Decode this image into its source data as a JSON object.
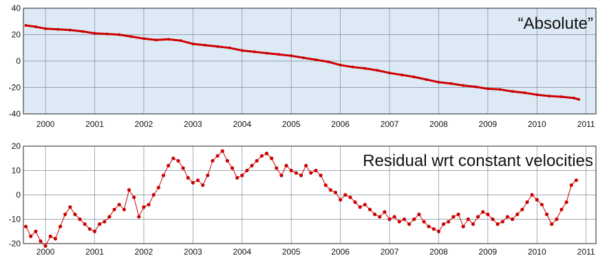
{
  "chart_data": [
    {
      "type": "line",
      "title": "",
      "label": "“Absolute”",
      "xlabel": "",
      "ylabel": "",
      "x_ticks": [
        "2000",
        "2001",
        "2002",
        "2003",
        "2004",
        "2005",
        "2006",
        "2007",
        "2008",
        "2009",
        "2010",
        "2011"
      ],
      "y_ticks": [
        "40",
        "20",
        "0",
        "-20",
        "-40"
      ],
      "xlim": [
        1999.55,
        2011.2
      ],
      "ylim": [
        -40,
        40
      ],
      "grid": true,
      "background": "#dde9f5",
      "series": [
        {
          "color": "#cc0000",
          "markers": true,
          "x": [
            1999.6,
            1999.8,
            2000.0,
            2000.25,
            2000.5,
            2000.75,
            2001.0,
            2001.25,
            2001.5,
            2001.75,
            2002.0,
            2002.25,
            2002.5,
            2002.75,
            2003.0,
            2003.25,
            2003.5,
            2003.75,
            2004.0,
            2004.25,
            2004.5,
            2004.75,
            2005.0,
            2005.25,
            2005.5,
            2005.75,
            2006.0,
            2006.25,
            2006.5,
            2006.75,
            2007.0,
            2007.25,
            2007.5,
            2007.75,
            2008.0,
            2008.25,
            2008.5,
            2008.75,
            2009.0,
            2009.25,
            2009.5,
            2009.75,
            2010.0,
            2010.25,
            2010.5,
            2010.75,
            2010.85
          ],
          "y": [
            27,
            26,
            24.5,
            24,
            23.5,
            22.5,
            21,
            20.5,
            20,
            18.5,
            17,
            16,
            16.5,
            15.5,
            13,
            12,
            11,
            10,
            8,
            7,
            6,
            5,
            4,
            2.5,
            1,
            -0.5,
            -3,
            -4.5,
            -5.5,
            -7,
            -9,
            -10.5,
            -12,
            -14,
            -16,
            -17,
            -18.5,
            -19.5,
            -21,
            -21.5,
            -23,
            -24,
            -25.5,
            -26.5,
            -27,
            -28,
            -29
          ]
        }
      ]
    },
    {
      "type": "line",
      "title": "",
      "label": "Residual  wrt constant velocities",
      "xlabel": "",
      "ylabel": "",
      "x_ticks": [
        "2000",
        "2001",
        "2002",
        "2003",
        "2004",
        "2005",
        "2006",
        "2007",
        "2008",
        "2009",
        "2010",
        "2011"
      ],
      "y_ticks": [
        "20",
        "10",
        "0",
        "-10",
        "-20"
      ],
      "xlim": [
        1999.55,
        2011.2
      ],
      "ylim": [
        -20,
        20
      ],
      "grid": true,
      "background": "#ffffff",
      "series": [
        {
          "color": "#cc0000",
          "markers": true,
          "x": [
            1999.6,
            1999.7,
            1999.8,
            1999.9,
            2000.0,
            2000.1,
            2000.2,
            2000.3,
            2000.4,
            2000.5,
            2000.6,
            2000.7,
            2000.8,
            2000.9,
            2001.0,
            2001.1,
            2001.2,
            2001.3,
            2001.4,
            2001.5,
            2001.6,
            2001.7,
            2001.8,
            2001.9,
            2002.0,
            2002.1,
            2002.2,
            2002.3,
            2002.4,
            2002.5,
            2002.6,
            2002.7,
            2002.8,
            2002.9,
            2003.0,
            2003.1,
            2003.2,
            2003.3,
            2003.4,
            2003.5,
            2003.6,
            2003.7,
            2003.8,
            2003.9,
            2004.0,
            2004.1,
            2004.2,
            2004.3,
            2004.4,
            2004.5,
            2004.6,
            2004.7,
            2004.8,
            2004.9,
            2005.0,
            2005.1,
            2005.2,
            2005.3,
            2005.4,
            2005.5,
            2005.6,
            2005.7,
            2005.8,
            2005.9,
            2006.0,
            2006.1,
            2006.2,
            2006.3,
            2006.4,
            2006.5,
            2006.6,
            2006.7,
            2006.8,
            2006.9,
            2007.0,
            2007.1,
            2007.2,
            2007.3,
            2007.4,
            2007.5,
            2007.6,
            2007.7,
            2007.8,
            2007.9,
            2008.0,
            2008.1,
            2008.2,
            2008.3,
            2008.4,
            2008.5,
            2008.6,
            2008.7,
            2008.8,
            2008.9,
            2009.0,
            2009.1,
            2009.2,
            2009.3,
            2009.4,
            2009.5,
            2009.6,
            2009.7,
            2009.8,
            2009.9,
            2010.0,
            2010.1,
            2010.2,
            2010.3,
            2010.4,
            2010.5,
            2010.6,
            2010.7,
            2010.8
          ],
          "y": [
            -13,
            -17,
            -15,
            -19,
            -21,
            -17,
            -18,
            -13,
            -8,
            -5,
            -8,
            -10,
            -12,
            -14,
            -15,
            -12,
            -11,
            -9,
            -6,
            -4,
            -6,
            2,
            -1,
            -9,
            -5,
            -4,
            0,
            3,
            8,
            12,
            15,
            14,
            11,
            7,
            5,
            6,
            4,
            8,
            14,
            16,
            18,
            14,
            11,
            7,
            8,
            10,
            12,
            14,
            16,
            17,
            15,
            11,
            8,
            12,
            10,
            9,
            8,
            12,
            9,
            10,
            8,
            4,
            2,
            1,
            -2,
            0,
            -1,
            -3,
            -5,
            -4,
            -6,
            -8,
            -9,
            -7,
            -10,
            -9,
            -11,
            -10,
            -12,
            -10,
            -8,
            -11,
            -13,
            -14,
            -15,
            -12,
            -11,
            -9,
            -8,
            -13,
            -10,
            -12,
            -9,
            -7,
            -8,
            -10,
            -12,
            -11,
            -9,
            -10,
            -8,
            -6,
            -3,
            0,
            -2,
            -4,
            -8,
            -12,
            -10,
            -6,
            -3,
            4,
            6
          ]
        }
      ]
    }
  ]
}
